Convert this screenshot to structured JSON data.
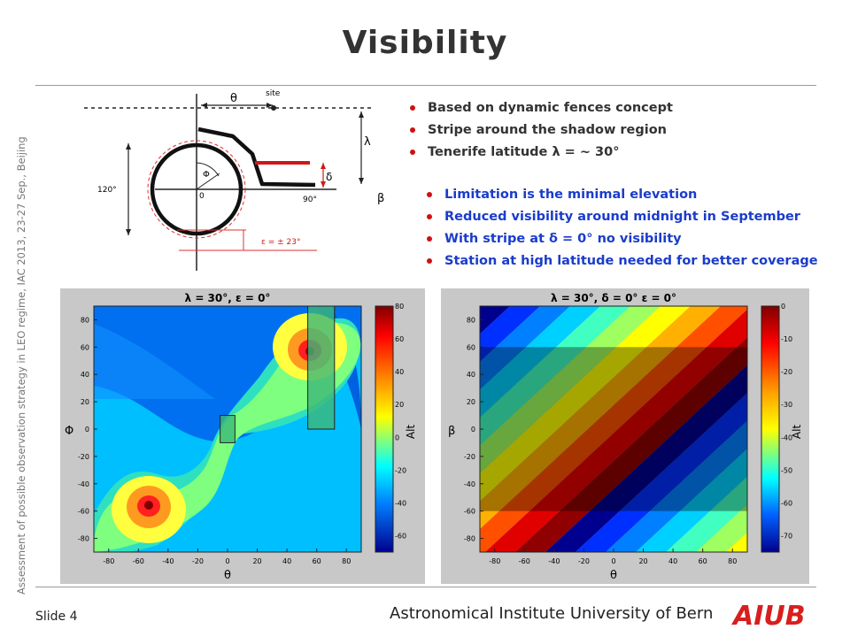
{
  "slide": {
    "title": "Visibility",
    "side_note": "Assessment of possible observation strategy in LEO regime, IAC 2013, 23-27 Sep., Beijing",
    "slide_number": "Slide 4",
    "institute": "Astronomical Institute University of Bern",
    "logo_text": "AIUB",
    "logo_color": "#d81e1e"
  },
  "diagram": {
    "theta": "θ",
    "site": "site",
    "lambda": "λ",
    "delta": "δ",
    "phi": "Φ",
    "zero": "0",
    "angle_120": "120°",
    "angle_90": "90°",
    "beta": "β",
    "epsilon": "ε = ± 23°"
  },
  "bullets_1": [
    "Based on dynamic fences concept",
    "Stripe around the shadow region",
    "Tenerife latitude λ = ~ 30°"
  ],
  "bullets_2": [
    "Limitation is the minimal elevation",
    "Reduced visibility around midnight in September",
    "With stripe at δ = 0° no visibility",
    "Station at high latitude needed for better coverage"
  ],
  "chart_data": [
    {
      "type": "heatmap",
      "title": "λ = 30°, ε = 0°",
      "xlabel": "θ",
      "ylabel": "Φ",
      "xlim": [
        -90,
        90
      ],
      "ylim": [
        -90,
        90
      ],
      "x_ticks": [
        -80,
        -60,
        -40,
        -20,
        0,
        20,
        40,
        60,
        80
      ],
      "y_ticks": [
        80,
        60,
        40,
        20,
        0,
        -20,
        -40,
        -60,
        -80
      ],
      "colorbar": {
        "label": "Alt",
        "min": -70,
        "max": 80,
        "ticks": [
          80,
          60,
          40,
          20,
          0,
          -20,
          -40,
          -60
        ]
      },
      "extrema": [
        {
          "theta": 60,
          "phi": 60,
          "alt": 80
        },
        {
          "theta": -60,
          "phi": -60,
          "alt": 80
        }
      ],
      "highlight_boxes": [
        {
          "theta": [
            54,
            72
          ],
          "phi": [
            0,
            90
          ]
        },
        {
          "theta": [
            -5,
            5
          ],
          "phi": [
            -10,
            10
          ]
        }
      ]
    },
    {
      "type": "heatmap",
      "title": "λ = 30°, δ = 0° ε = 0°",
      "xlabel": "θ",
      "ylabel": "β",
      "xlim": [
        -90,
        90
      ],
      "ylim": [
        -90,
        90
      ],
      "x_ticks": [
        -80,
        -60,
        -40,
        -20,
        0,
        20,
        40,
        60,
        80
      ],
      "y_ticks": [
        80,
        60,
        40,
        20,
        0,
        -20,
        -40,
        -60,
        -80
      ],
      "colorbar": {
        "label": "Alt",
        "min": -75,
        "max": 0,
        "ticks": [
          0,
          -10,
          -20,
          -30,
          -40,
          -50,
          -60,
          -70
        ]
      },
      "shaded_band_beta": [
        -60,
        60
      ]
    }
  ]
}
